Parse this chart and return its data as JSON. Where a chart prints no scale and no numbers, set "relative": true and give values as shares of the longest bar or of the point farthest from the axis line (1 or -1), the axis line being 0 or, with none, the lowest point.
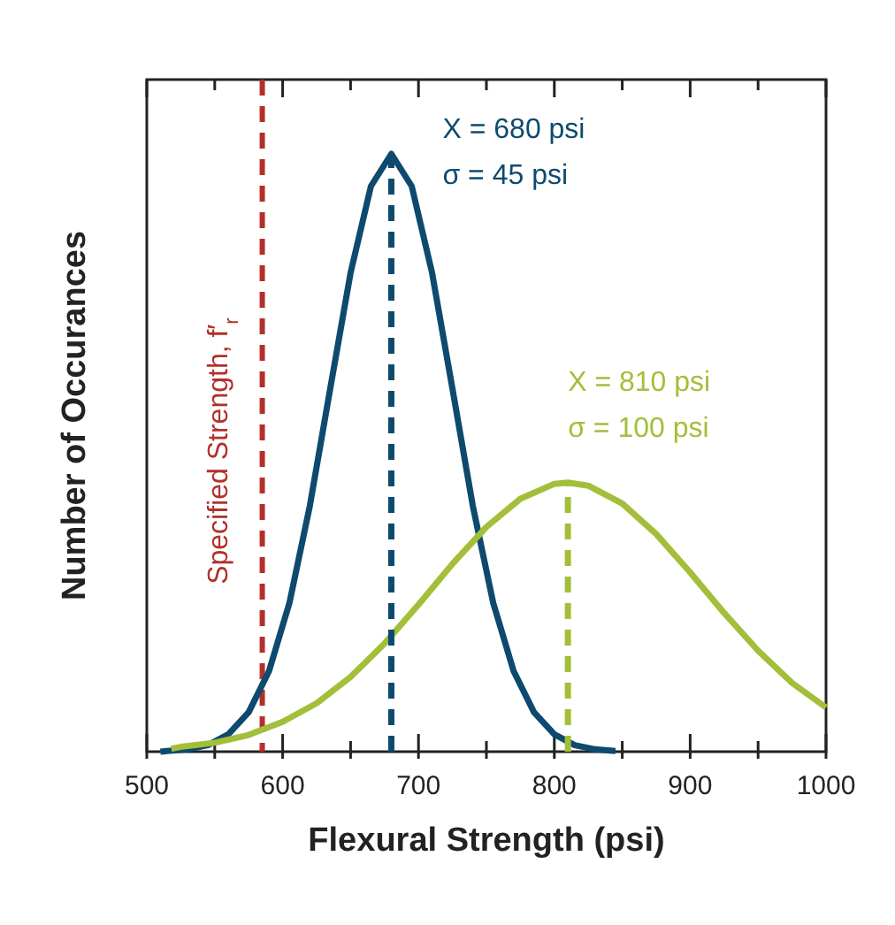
{
  "chart_data": {
    "type": "line",
    "relative": true,
    "xlabel": "Flexural Strength (psi)",
    "ylabel": "Number of Occurances",
    "xlim": [
      500,
      1000
    ],
    "xticks": [
      500,
      {
        "value": 550,
        "label": null
      },
      600,
      {
        "value": 650,
        "label": null
      },
      700,
      {
        "value": 750,
        "label": null
      },
      800,
      {
        "value": 850,
        "label": null
      },
      900,
      {
        "value": 950,
        "label": null
      },
      1000
    ],
    "grid": false,
    "marker": "none",
    "line_style": "solid",
    "series": [
      {
        "color": "#0d4a6e",
        "x": [
          510,
          515,
          530,
          545,
          560,
          575,
          590,
          605,
          620,
          635,
          650,
          665,
          680,
          695,
          710,
          725,
          740,
          755,
          770,
          785,
          800,
          815,
          830,
          845
        ],
        "values": [
          0,
          0.0012,
          0.0039,
          0.011,
          0.029,
          0.066,
          0.135,
          0.249,
          0.411,
          0.607,
          0.801,
          0.946,
          1,
          0.946,
          0.801,
          0.607,
          0.411,
          0.249,
          0.135,
          0.066,
          0.029,
          0.011,
          0.0039,
          0.0012
        ]
      },
      {
        "color": "#a3bf3a",
        "x": [
          518,
          525,
          550,
          575,
          600,
          625,
          650,
          675,
          700,
          725,
          750,
          775,
          800,
          810,
          825,
          850,
          875,
          900,
          925,
          950,
          975,
          1000
        ],
        "values": [
          0.005,
          0.008,
          0.015,
          0.028,
          0.05,
          0.081,
          0.125,
          0.181,
          0.246,
          0.314,
          0.376,
          0.423,
          0.448,
          0.45,
          0.445,
          0.415,
          0.364,
          0.3,
          0.232,
          0.169,
          0.115,
          0.074
        ]
      },
      {
        "color": "#0d4a6e",
        "line_style": "dashed",
        "x": [
          680,
          680
        ],
        "values": [
          0,
          1
        ]
      },
      {
        "color": "#a3bf3a",
        "line_style": "dashed",
        "x": [
          810,
          810
        ],
        "values": [
          0,
          0.45
        ]
      }
    ],
    "ref_lines": [
      {
        "axis": "x",
        "value": 585,
        "label": "Specified Strength, f′$_{r}$",
        "color": "#b3302a",
        "line_style": "dashed"
      }
    ],
    "annotations": [
      "X = 680 psi",
      "σ = 45 psi",
      "X = 810 psi",
      "σ = 100 psi"
    ]
  }
}
